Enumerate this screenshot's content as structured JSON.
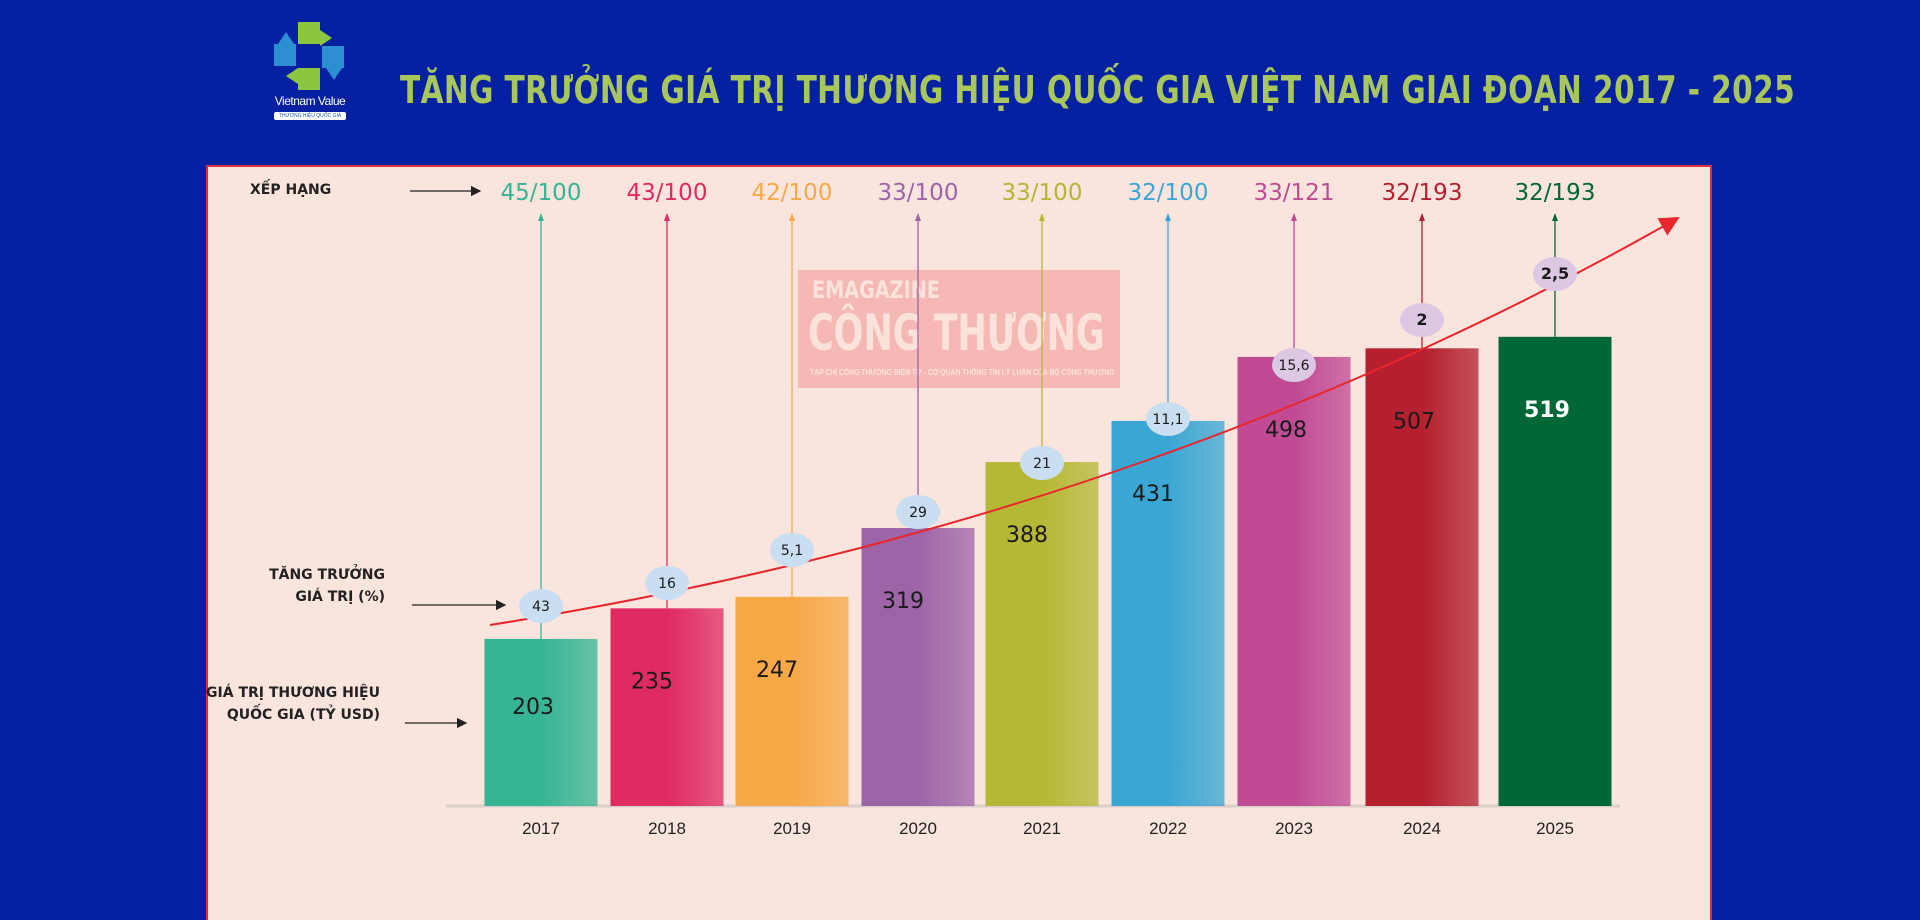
{
  "logo": {
    "name": "Vietnam Value",
    "tagline": "THƯƠNG HIỆU QUỐC GIA"
  },
  "watermark": {
    "line1": "EMAGAZINE",
    "line2": "CÔNG THƯƠNG",
    "line3": "TẠP CHÍ CÔNG THƯƠNG ĐIỆN TỬ - CƠ QUAN THÔNG TIN LÝ LUẬN CỦA BỘ CÔNG THƯƠNG"
  },
  "chart_data": {
    "type": "bar",
    "title": "TĂNG TRƯỞNG GIÁ TRỊ THƯƠNG HIỆU QUỐC GIA VIỆT NAM GIAI ĐOẠN 2017 - 2025",
    "row_labels": {
      "ranking": "XẾP HẠNG",
      "growth_line1": "TĂNG TRƯỞNG",
      "growth_line2": "GIÁ TRỊ (%)",
      "value_line1": "GIÁ TRỊ THƯƠNG HIỆU",
      "value_line2": "QUỐC GIA (TỶ USD)"
    },
    "categories": [
      "2017",
      "2018",
      "2019",
      "2020",
      "2021",
      "2022",
      "2023",
      "2024",
      "2025"
    ],
    "values": [
      203,
      235,
      247,
      319,
      388,
      431,
      498,
      507,
      519
    ],
    "growth_pct": [
      "43",
      "16",
      "5,1",
      "29",
      "21",
      "11,1",
      "15,6",
      "2",
      "2,5"
    ],
    "ranking": [
      "45/100",
      "43/100",
      "42/100",
      "33/100",
      "33/100",
      "32/100",
      "33/121",
      "32/193",
      "32/193"
    ],
    "colors": [
      "#36b594",
      "#e02a62",
      "#f7a847",
      "#9e64a8",
      "#b5b834",
      "#3aa6d3",
      "#c04a94",
      "#b51f2e",
      "#006837"
    ],
    "trend_color": "#e8262d",
    "background": "#0520a0",
    "panel_color": "#fae5de"
  }
}
